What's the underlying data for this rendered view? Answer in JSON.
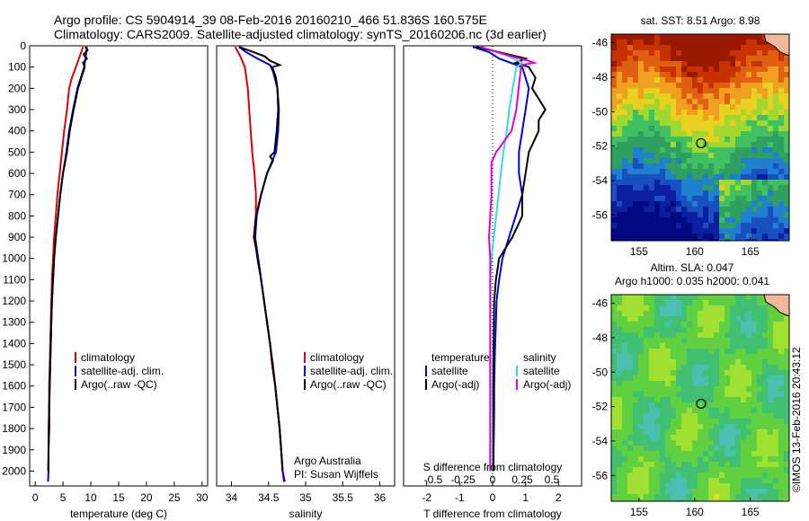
{
  "header": {
    "line1": "Argo profile: CS 5904914_39 08-Feb-2016 20160210_466 51.836S 160.575E",
    "line2": "Climatology: CARS2009. Satellite-adjusted climatology: synTS_20160206.nc (3d earlier)"
  },
  "footer_credit": "©IMOS 13-Feb-2016 20:43:12",
  "colors": {
    "climatology": "#dd0000",
    "satellite": "#0000dd",
    "argo": "#000000",
    "sat_sal": "#33dddd",
    "argo_sal": "#dd00dd"
  },
  "chart_data": [
    {
      "type": "line",
      "id": "temperature",
      "xlabel": "temperature (deg C)",
      "ylabel": "",
      "xlim": [
        -1,
        31
      ],
      "ylim": [
        2070,
        0
      ],
      "y_reversed": true,
      "xticks": [
        "0",
        "5",
        "10",
        "15",
        "20",
        "25",
        "30"
      ],
      "yticks": [
        "0",
        "100",
        "200",
        "300",
        "400",
        "500",
        "600",
        "700",
        "800",
        "900",
        "1000",
        "1100",
        "1200",
        "1300",
        "1400",
        "1500",
        "1600",
        "1700",
        "1800",
        "1900",
        "2000"
      ],
      "legend": [
        "climatology",
        "satellite-adj. clim.",
        "Argo(..raw -QC)"
      ],
      "series": [
        {
          "name": "climatology",
          "color": "#dd0000",
          "depth": [
            5,
            50,
            100,
            150,
            200,
            300,
            400,
            500,
            600,
            700,
            800,
            900,
            1000,
            1100,
            1200,
            1300,
            1400,
            1500,
            1600,
            1700,
            1800,
            1900,
            2000
          ],
          "x": [
            8.6,
            8.0,
            7.3,
            6.6,
            6.1,
            5.7,
            5.2,
            4.8,
            4.4,
            4.0,
            3.7,
            3.4,
            3.2,
            3.0,
            2.9,
            2.8,
            2.7,
            2.6,
            2.5,
            2.5,
            2.4,
            2.4,
            2.3
          ]
        },
        {
          "name": "satellite-adj. clim.",
          "color": "#0000dd",
          "depth": [
            5,
            50,
            100,
            150,
            200,
            300,
            400,
            500,
            600,
            700,
            800,
            900,
            1000,
            1100,
            1200,
            1300,
            1400,
            1500,
            1600,
            1700,
            1800,
            1900,
            2000,
            2050
          ],
          "x": [
            9.3,
            9.1,
            8.8,
            8.2,
            7.6,
            6.8,
            6.1,
            5.6,
            5.0,
            4.5,
            4.1,
            3.7,
            3.4,
            3.2,
            3.0,
            2.9,
            2.8,
            2.7,
            2.6,
            2.5,
            2.5,
            2.4,
            2.4,
            2.3
          ]
        },
        {
          "name": "Argo(..raw -QC)",
          "color": "#000000",
          "depth": [
            5,
            20,
            40,
            60,
            80,
            100,
            150,
            200,
            300,
            400,
            500,
            600,
            700,
            800,
            900,
            1000,
            1100,
            1200,
            1300,
            1400,
            1500,
            1600,
            1700,
            1800,
            1900,
            2000
          ],
          "x": [
            9.0,
            9.4,
            8.7,
            9.3,
            8.6,
            8.9,
            8.3,
            7.7,
            6.9,
            6.2,
            5.7,
            5.0,
            4.5,
            4.1,
            3.7,
            3.4,
            3.2,
            3.0,
            2.9,
            2.8,
            2.7,
            2.6,
            2.5,
            2.5,
            2.4,
            2.4
          ]
        }
      ]
    },
    {
      "type": "line",
      "id": "salinity",
      "xlabel": "salinity",
      "xlim": [
        33.8,
        36.2
      ],
      "ylim": [
        2070,
        0
      ],
      "y_reversed": true,
      "xticks": [
        "34",
        "34.5",
        "35",
        "35.5",
        "36"
      ],
      "legend": [
        "climatology",
        "satellite-adj. clim.",
        "Argo(..raw -QC)"
      ],
      "credit": [
        "Argo Australia",
        "PI: Susan Wijffels"
      ],
      "series": [
        {
          "name": "climatology",
          "color": "#dd0000",
          "depth": [
            5,
            50,
            100,
            200,
            300,
            400,
            500,
            600,
            700,
            800,
            900,
            1000,
            1100,
            1200,
            1300,
            1400,
            1500,
            1600,
            1700,
            1800,
            1900,
            2000,
            2050
          ],
          "x": [
            34.05,
            34.12,
            34.18,
            34.22,
            34.24,
            34.26,
            34.28,
            34.31,
            34.33,
            34.33,
            34.3,
            34.36,
            34.4,
            34.44,
            34.48,
            34.52,
            34.56,
            34.59,
            34.62,
            34.65,
            34.67,
            34.69,
            34.72
          ]
        },
        {
          "name": "satellite-adj. clim.",
          "color": "#0000dd",
          "depth": [
            5,
            30,
            60,
            90,
            120,
            200,
            300,
            400,
            500,
            600,
            700,
            800,
            900,
            1000,
            1100,
            1200,
            1300,
            1400,
            1500,
            1600,
            1700,
            1800,
            1900,
            2000,
            2050
          ],
          "x": [
            34.1,
            34.2,
            34.35,
            34.52,
            34.56,
            34.62,
            34.64,
            34.63,
            34.6,
            34.48,
            34.4,
            34.34,
            34.32,
            34.36,
            34.4,
            34.44,
            34.48,
            34.52,
            34.55,
            34.59,
            34.62,
            34.65,
            34.67,
            34.69,
            34.71
          ]
        },
        {
          "name": "Argo(..raw -QC)",
          "color": "#000000",
          "depth": [
            5,
            30,
            50,
            70,
            90,
            100,
            150,
            200,
            300,
            400,
            500,
            520,
            540,
            600,
            700,
            800,
            900,
            1000,
            1100,
            1200,
            1300,
            1400,
            1500,
            1600,
            1700,
            1800,
            1900,
            2000
          ],
          "x": [
            34.1,
            34.3,
            34.45,
            34.52,
            34.65,
            34.55,
            34.6,
            34.62,
            34.63,
            34.61,
            34.58,
            34.52,
            34.56,
            34.48,
            34.4,
            34.33,
            34.31,
            34.35,
            34.4,
            34.44,
            34.48,
            34.52,
            34.55,
            34.59,
            34.62,
            34.65,
            34.67,
            34.69
          ]
        }
      ]
    },
    {
      "type": "line",
      "id": "difference",
      "xlabel": "T difference from climatology",
      "xlabel_top": "S difference from climatology",
      "xlim": [
        -2.7,
        2.7
      ],
      "ylim": [
        2070,
        0
      ],
      "y_reversed": true,
      "xticks": [
        "-2",
        "-1",
        "0",
        "1",
        "2"
      ],
      "xticks_top": [
        "-0.5",
        "-0.25",
        "0",
        "0.25",
        "0.5"
      ],
      "legend_left_title": "temperature",
      "legend_left": [
        "satellite",
        "Argo(-adj)"
      ],
      "legend_right_title": "salinity",
      "legend_right": [
        "satellite",
        "Argo(-adj)"
      ],
      "series": [
        {
          "name": "temperature satellite",
          "color": "#0000dd",
          "depth": [
            5,
            30,
            60,
            100,
            200,
            300,
            400,
            500,
            600,
            700,
            800,
            900,
            1000,
            1100,
            1200,
            1300,
            1400,
            1500,
            1600,
            1700,
            1800,
            1900,
            2000
          ],
          "x": [
            -0.6,
            -0.1,
            0.2,
            0.9,
            1.1,
            1.0,
            0.9,
            0.8,
            0.8,
            0.9,
            0.7,
            0.5,
            0.3,
            0.2,
            0.12,
            0.1,
            0.08,
            0.06,
            0.05,
            0.05,
            0.04,
            0.03,
            0.03
          ]
        },
        {
          "name": "temperature Argo(-adj)",
          "color": "#000000",
          "depth": [
            5,
            30,
            60,
            80,
            100,
            150,
            200,
            300,
            350,
            400,
            500,
            600,
            700,
            800,
            900,
            1000,
            1100,
            1200,
            1400,
            1600,
            1800,
            2000
          ],
          "x": [
            -0.5,
            0.2,
            1.0,
            0.7,
            1.1,
            1.3,
            1.2,
            1.6,
            1.4,
            1.4,
            1.1,
            1.0,
            0.9,
            0.9,
            0.6,
            0.2,
            0.1,
            0.05,
            0.03,
            0.02,
            0.02,
            0.02
          ]
        },
        {
          "name": "salinity satellite",
          "color": "#33dddd",
          "depth": [
            5,
            40,
            80,
            100,
            200,
            300,
            400,
            500,
            600,
            700,
            800,
            900,
            1000,
            1100,
            1200,
            1400,
            1600,
            1800,
            2000
          ],
          "x": [
            -0.1,
            0.1,
            0.25,
            0.2,
            0.17,
            0.14,
            0.12,
            0.09,
            0.07,
            0.05,
            0.03,
            0.01,
            -0.01,
            -0.02,
            -0.02,
            -0.02,
            -0.02,
            -0.02,
            -0.02
          ]
        },
        {
          "name": "salinity Argo(-adj)",
          "color": "#dd00dd",
          "depth": [
            5,
            40,
            70,
            80,
            90,
            100,
            200,
            300,
            400,
            500,
            550,
            600,
            700,
            800,
            900,
            1000,
            1100,
            1200,
            1400,
            1600,
            1800,
            2000
          ],
          "x": [
            -0.1,
            0.1,
            0.3,
            0.35,
            0.25,
            0.24,
            0.22,
            0.2,
            0.16,
            0.03,
            -0.01,
            -0.01,
            -0.01,
            -0.02,
            -0.03,
            -0.02,
            -0.02,
            -0.02,
            -0.02,
            -0.02,
            -0.02,
            -0.02
          ]
        }
      ]
    },
    {
      "type": "heatmap",
      "id": "sst_map",
      "title": "sat. SST: 8.51 Argo: 8.98",
      "xticks": [
        "155",
        "160",
        "165"
      ],
      "yticks": [
        "-46",
        "-48",
        "-50",
        "-52",
        "-54",
        "-56"
      ],
      "xlim": [
        152.5,
        168.5
      ],
      "ylim": [
        -57.5,
        -45.5
      ],
      "marker": {
        "lon": 160.575,
        "lat": -51.836
      }
    },
    {
      "type": "heatmap",
      "id": "sla_map",
      "title_line1": "Altim. SLA: 0.047",
      "title_line2": "Argo h1000: 0.035 h2000: 0.041",
      "xticks": [
        "155",
        "160",
        "165"
      ],
      "yticks": [
        "-46",
        "-48",
        "-50",
        "-52",
        "-54",
        "-56"
      ],
      "xlim": [
        152.5,
        168.5
      ],
      "ylim": [
        -57.5,
        -45.5
      ],
      "marker": {
        "lon": 160.575,
        "lat": -51.836
      }
    }
  ]
}
